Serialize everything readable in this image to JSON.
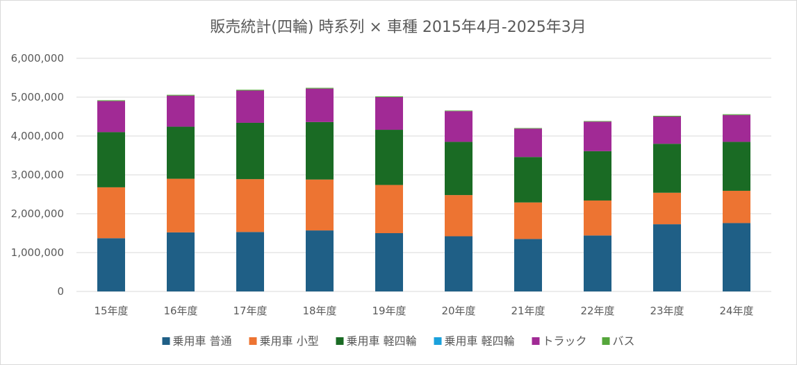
{
  "chart_data": {
    "type": "bar",
    "stacked": true,
    "title": "販売統計(四輪) 時系列 × 車種 2015年4月-2025年3月",
    "xlabel": "",
    "ylabel": "",
    "categories": [
      "15年度",
      "16年度",
      "17年度",
      "18年度",
      "19年度",
      "20年度",
      "21年度",
      "22年度",
      "23年度",
      "24年度"
    ],
    "ylim": [
      0,
      6000000
    ],
    "yticks": [
      0,
      1000000,
      2000000,
      3000000,
      4000000,
      5000000,
      6000000
    ],
    "ytick_labels": [
      "0",
      "1,000,000",
      "2,000,000",
      "3,000,000",
      "4,000,000",
      "5,000,000",
      "6,000,000"
    ],
    "grid": true,
    "legend_position": "bottom",
    "series": [
      {
        "name": "乗用車 普通",
        "color": "#1f5f86",
        "values": [
          1370000,
          1520000,
          1530000,
          1570000,
          1500000,
          1420000,
          1350000,
          1440000,
          1730000,
          1760000
        ]
      },
      {
        "name": "乗用車 小型",
        "color": "#ed7432",
        "values": [
          1310000,
          1380000,
          1360000,
          1310000,
          1240000,
          1060000,
          940000,
          900000,
          810000,
          830000
        ]
      },
      {
        "name": "乗用車 軽四輪",
        "color": "#1a6b24",
        "values": [
          1420000,
          1340000,
          1450000,
          1480000,
          1420000,
          1370000,
          1170000,
          1270000,
          1260000,
          1260000
        ]
      },
      {
        "name": "乗用車 軽四輪",
        "color": "#1aa1dc",
        "values": [
          0,
          0,
          0,
          0,
          0,
          0,
          0,
          0,
          0,
          0
        ]
      },
      {
        "name": "トラック",
        "color": "#a12a95",
        "values": [
          800000,
          800000,
          830000,
          860000,
          840000,
          790000,
          730000,
          760000,
          700000,
          690000
        ]
      },
      {
        "name": "バス",
        "color": "#55a63b",
        "values": [
          20000,
          20000,
          20000,
          20000,
          20000,
          15000,
          15000,
          15000,
          20000,
          20000
        ]
      }
    ]
  }
}
